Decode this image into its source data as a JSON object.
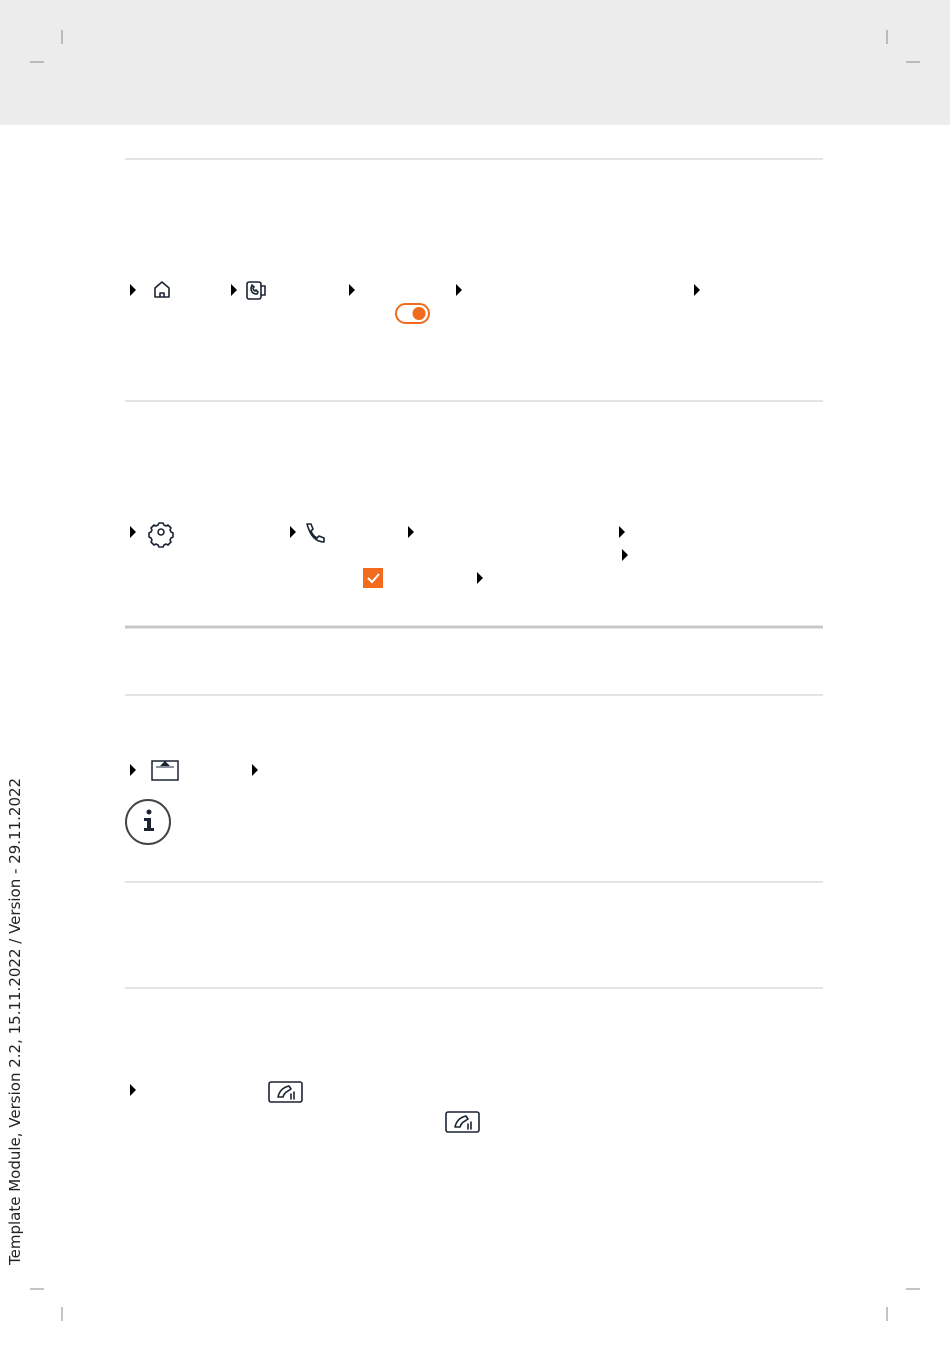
{
  "sidebar": {
    "text": "Template Module, Version 2.2, 15.11.2022 / Version - 29.11.2022"
  }
}
